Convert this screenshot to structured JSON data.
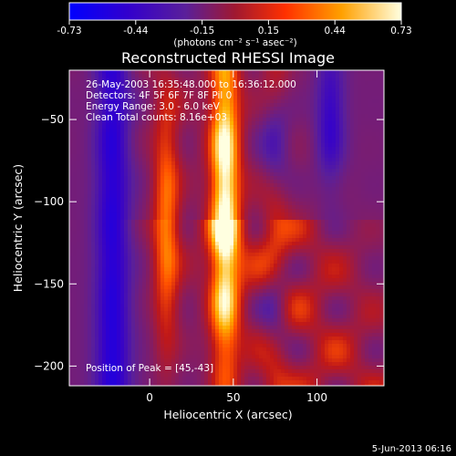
{
  "colorbar": {
    "ticks": [
      "-0.73",
      "-0.44",
      "-0.15",
      "0.15",
      "0.44",
      "0.73"
    ],
    "units_label": "(photons cm⁻² s⁻¹ asec⁻²)",
    "range": [
      -0.73,
      0.73
    ]
  },
  "chart_data": {
    "type": "heatmap",
    "title": "Reconstructed RHESSI Image",
    "xlabel": "Heliocentric X (arcsec)",
    "ylabel": "Heliocentric Y (arcsec)",
    "xlim": [
      -48,
      140
    ],
    "ylim": [
      -212,
      -20
    ],
    "x_ticks": [
      0,
      50,
      100
    ],
    "y_ticks": [
      -50,
      -100,
      -150,
      -200
    ],
    "colormap": [
      "#0000ff",
      "#3300cc",
      "#5a1f9a",
      "#8b1c5a",
      "#c01818",
      "#ff5000",
      "#ffb000",
      "#ffffe0"
    ],
    "annotations": [
      "26-May-2003 16:35:48.000 to 16:36:12.000",
      "Detectors: 4F 5F 6F 7F 8F  Pil 0",
      "Energy Range: 3.0 - 6.0 keV",
      "Clean     Total counts: 8.16e+03"
    ],
    "peak_label": "Position of Peak = [45,-43]",
    "peak": [
      45,
      -43
    ],
    "grid": false
  },
  "footer": {
    "date": "5-Jun-2013 06:16"
  }
}
